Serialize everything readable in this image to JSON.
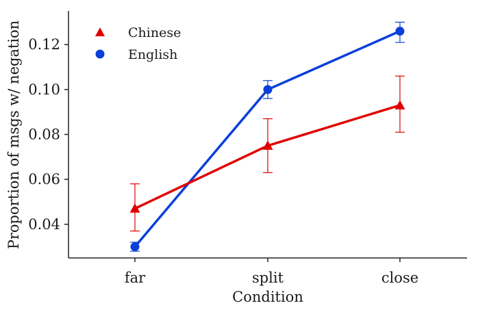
{
  "chart_data": {
    "type": "line",
    "title": "",
    "xlabel": "Condition",
    "ylabel": "Proportion of msgs w/ negation",
    "categories": [
      "far",
      "split",
      "close"
    ],
    "ylim": [
      0.025,
      0.135
    ],
    "yticks": [
      "0.04",
      "0.06",
      "0.08",
      "0.10",
      "0.12"
    ],
    "grid": false,
    "legend_position": "top-left",
    "series": [
      {
        "name": "Chinese",
        "color": "#e00000",
        "marker": "triangle",
        "values": [
          0.047,
          0.075,
          0.093
        ],
        "err_low": [
          0.037,
          0.063,
          0.081
        ],
        "err_high": [
          0.058,
          0.087,
          0.106
        ]
      },
      {
        "name": "English",
        "color": "#0a3fd9",
        "marker": "circle",
        "values": [
          0.03,
          0.1,
          0.126
        ],
        "err_low": [
          0.028,
          0.096,
          0.121
        ],
        "err_high": [
          0.032,
          0.104,
          0.13
        ]
      }
    ]
  }
}
